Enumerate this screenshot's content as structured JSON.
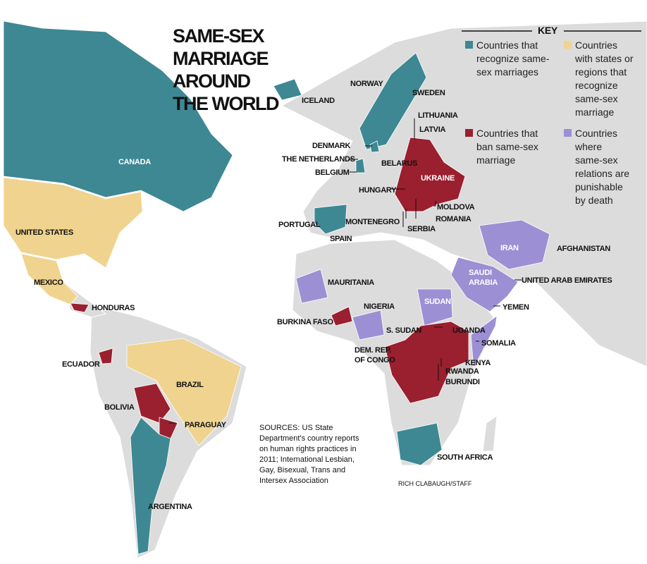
{
  "title": [
    "SAME-SEX",
    "MARRIAGE",
    "AROUND",
    "THE WORLD"
  ],
  "key": {
    "heading": "KEY",
    "items": [
      {
        "lines": [
          "Countries that",
          "recognize same-",
          "sex marriages"
        ],
        "color": "#3d8893"
      },
      {
        "lines": [
          "Countries",
          "with states or",
          "regions that",
          "recognize",
          "same-sex",
          "marriage"
        ],
        "color": "#efd38f"
      },
      {
        "lines": [
          "Countries that",
          "ban same-sex",
          "marriage"
        ],
        "color": "#9a1f2f"
      },
      {
        "lines": [
          "Countries",
          "where",
          "same-sex",
          "relations are",
          "punishable",
          "by death"
        ],
        "color": "#9d8fd4"
      }
    ]
  },
  "map_labels": [
    "CANADA",
    "ICELAND",
    "NORWAY",
    "SWEDEN",
    "LITHUANIA",
    "LATVIA",
    "DENMARK",
    "THE NETHERLANDS",
    "BELGIUM",
    "BELARUS",
    "UKRAINE",
    "HUNGARY",
    "MOLDOVA",
    "ROMANIA",
    "MONTENEGRO",
    "SERBIA",
    "PORTUGAL",
    "SPAIN",
    "IRAN",
    "AFGHANISTAN",
    "UNITED STATES",
    "MEXICO",
    "HONDURAS",
    "MAURITANIA",
    [
      "SAUDI",
      "ARABIA"
    ],
    "UNITED ARAB EMIRATES",
    "YEMEN",
    "NIGERIA",
    "SUDAN",
    "BURKINA FASO",
    "S. SUDAN",
    "UGANDA",
    "SOMALIA",
    "KENYA",
    [
      "DEM. REP.",
      "OF CONGO"
    ],
    "RWANDA",
    "BURUNDI",
    "ECUADOR",
    "BRAZIL",
    "BOLIVIA",
    "PARAGUAY",
    "SOUTH AFRICA",
    "ARGENTINA"
  ],
  "sources": [
    "SOURCES: US State",
    "Department's country reports",
    "on human rights practices in",
    "2011; International Lesbian,",
    "Gay, Bisexual, Trans and",
    "Intersex Association"
  ],
  "credit": "RICH CLABAUGH/STAFF"
}
